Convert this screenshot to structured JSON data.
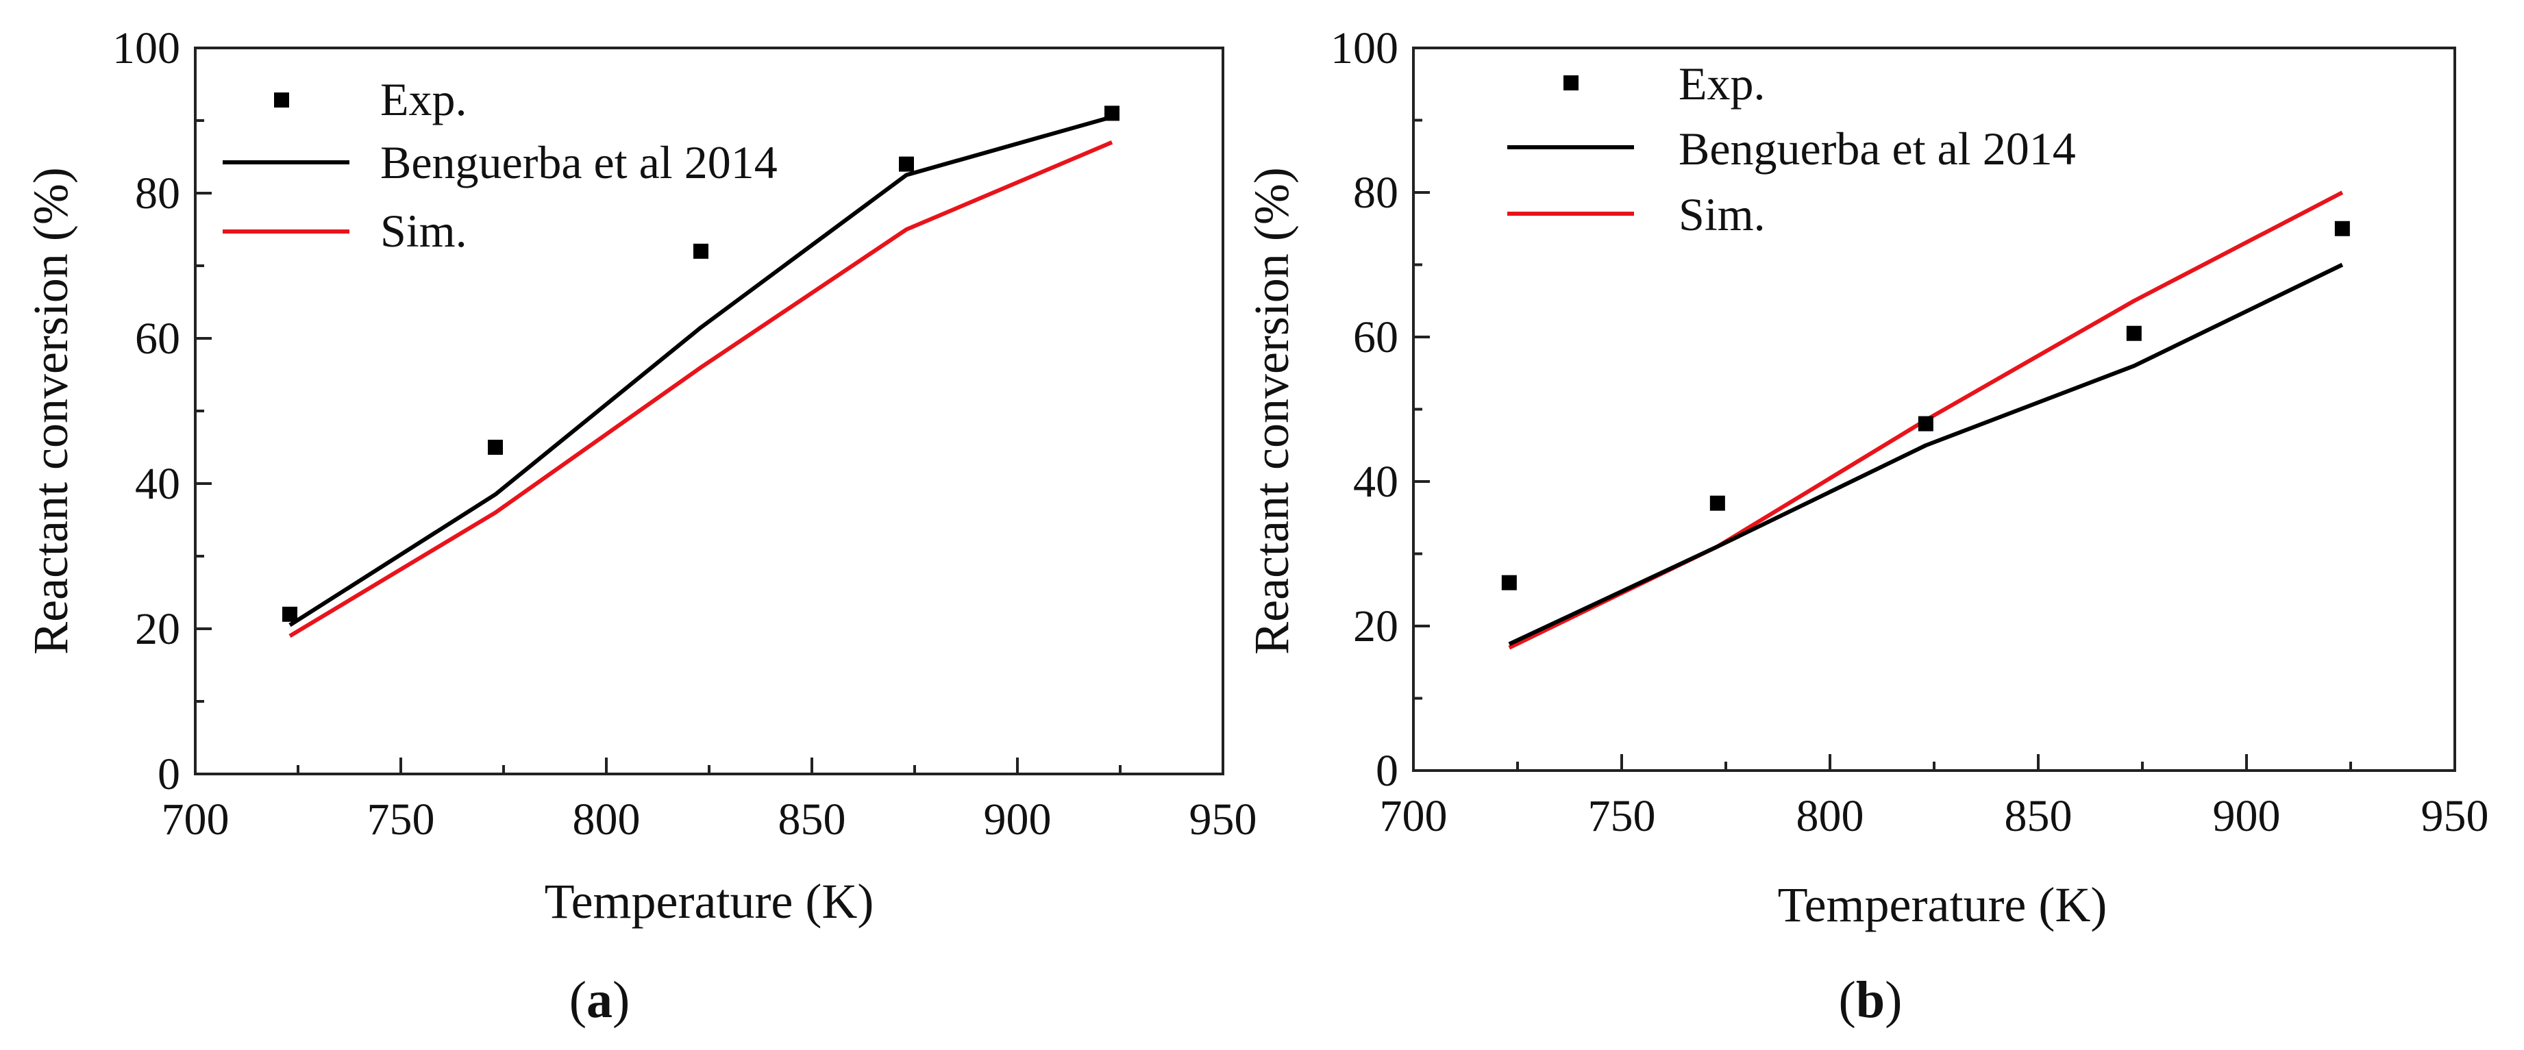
{
  "chart_data": [
    {
      "type": "line",
      "panel_label": "a",
      "xlabel": "Temperature (K)",
      "ylabel": "Reactant conversion (%)",
      "xlim": [
        700,
        950
      ],
      "ylim": [
        0,
        100
      ],
      "xticks": [
        700,
        750,
        800,
        850,
        900,
        950
      ],
      "yticks": [
        0,
        20,
        40,
        60,
        80,
        100
      ],
      "legend_position": "top-left",
      "series": [
        {
          "name": "Exp.",
          "style": "marker",
          "color": "#000000",
          "x": [
            723,
            773,
            823,
            873,
            923
          ],
          "y": [
            22,
            45,
            72,
            84,
            91
          ]
        },
        {
          "name": "Benguerba et al 2014",
          "style": "line",
          "color": "#000000",
          "x": [
            723,
            773,
            823,
            873,
            923
          ],
          "y": [
            20.5,
            38.5,
            61.5,
            82.5,
            90.5
          ]
        },
        {
          "name": "Sim.",
          "style": "line",
          "color": "#e8141b",
          "x": [
            723,
            773,
            823,
            873,
            923
          ],
          "y": [
            19,
            36,
            56,
            75,
            87
          ]
        }
      ]
    },
    {
      "type": "line",
      "panel_label": "b",
      "xlabel": "Temperature (K)",
      "ylabel": "Reactant conversion (%)",
      "xlim": [
        700,
        950
      ],
      "ylim": [
        0,
        100
      ],
      "xticks": [
        700,
        750,
        800,
        850,
        900,
        950
      ],
      "yticks": [
        0,
        20,
        40,
        60,
        80,
        100
      ],
      "legend_position": "top-left",
      "series": [
        {
          "name": "Exp.",
          "style": "marker",
          "color": "#000000",
          "x": [
            723,
            773,
            823,
            873,
            923
          ],
          "y": [
            26,
            37,
            48,
            60.5,
            75
          ]
        },
        {
          "name": "Benguerba et al 2014",
          "style": "line",
          "color": "#000000",
          "x": [
            723,
            773,
            823,
            873,
            923
          ],
          "y": [
            17.5,
            31,
            45,
            56,
            70
          ]
        },
        {
          "name": "Sim.",
          "style": "line",
          "color": "#e8141b",
          "x": [
            723,
            773,
            823,
            873,
            923
          ],
          "y": [
            17,
            31,
            48.5,
            65,
            80
          ]
        }
      ]
    }
  ]
}
